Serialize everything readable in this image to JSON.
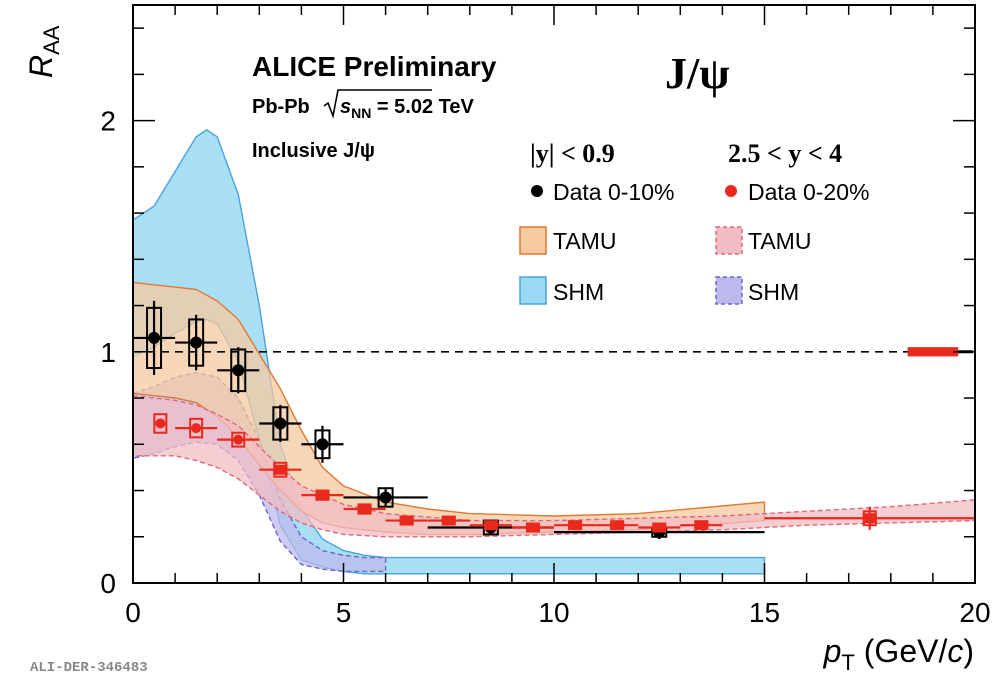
{
  "chart_data": {
    "type": "scatter",
    "title": "J/ψ",
    "xlabel": {
      "var": "p",
      "sub": "T",
      "unit_open": " (GeV/",
      "unit_c": "c",
      "unit_close": ")"
    },
    "ylabel": {
      "var": "R",
      "sub": "AA"
    },
    "xlim": [
      0,
      20
    ],
    "ylim": [
      0,
      2.5
    ],
    "xticks": [
      0,
      5,
      10,
      15,
      20
    ],
    "yticks": [
      0,
      1,
      2
    ],
    "reference_line": 1.0,
    "annotations": {
      "experiment": "ALICE Preliminary",
      "system": "Pb-Pb",
      "energy_var": "s",
      "energy_sub": "NN",
      "energy_value": " = 5.02 TeV",
      "selection": "Inclusive J/ψ",
      "id": "ALI-DER-346483"
    },
    "legend": {
      "col_mid_header": "|y| < 0.9",
      "col_fwd_header": "2.5 < y < 4",
      "mid_data": "Data 0-10%",
      "fwd_data": "Data 0-20%",
      "mid_tamu": "TAMU",
      "mid_shm": "SHM",
      "fwd_tamu": "TAMU",
      "fwd_shm": "SHM"
    },
    "colors": {
      "mid": "#000000",
      "fwd": "#e8291c",
      "tamu_mid_fill": "#f6c9a0",
      "tamu_mid_line": "#e07830",
      "shm_mid_fill": "#9ad9f2",
      "shm_mid_line": "#4aa3dd",
      "tamu_fwd_fill": "#f2bcc4",
      "tamu_fwd_line": "#dd6a7a",
      "shm_fwd_fill": "#bdb9ec",
      "shm_fwd_line": "#6a66cc"
    },
    "series": [
      {
        "name": "Data 0-10%",
        "color": "#000000",
        "x": [
          0.5,
          1.5,
          2.5,
          3.5,
          4.5,
          6.0,
          8.5,
          12.5
        ],
        "y": [
          1.06,
          1.04,
          0.92,
          0.69,
          0.6,
          0.37,
          0.24,
          0.22
        ],
        "xerr": [
          0.5,
          0.5,
          0.5,
          0.5,
          0.5,
          1.0,
          1.5,
          2.5
        ],
        "stat": [
          0.16,
          0.12,
          0.1,
          0.08,
          0.08,
          0.04,
          0.03,
          0.03
        ],
        "syst": [
          0.13,
          0.1,
          0.09,
          0.07,
          0.06,
          0.04,
          0.03,
          0.02
        ]
      },
      {
        "name": "Data 0-20%",
        "color": "#e8291c",
        "x": [
          0.65,
          1.5,
          2.5,
          3.5,
          4.5,
          5.5,
          6.5,
          7.5,
          8.5,
          9.5,
          10.5,
          11.5,
          12.5,
          13.5,
          17.5
        ],
        "y": [
          0.69,
          0.67,
          0.62,
          0.49,
          0.38,
          0.32,
          0.27,
          0.27,
          0.25,
          0.24,
          0.25,
          0.25,
          0.24,
          0.25,
          0.28
        ],
        "xerr": [
          0.15,
          0.5,
          0.5,
          0.5,
          0.5,
          0.5,
          0.5,
          0.5,
          0.5,
          0.5,
          0.5,
          0.5,
          0.5,
          0.5,
          2.5
        ],
        "stat": [
          0.02,
          0.02,
          0.02,
          0.02,
          0.01,
          0.01,
          0.01,
          0.01,
          0.01,
          0.01,
          0.01,
          0.01,
          0.01,
          0.01,
          0.05
        ],
        "syst": [
          0.04,
          0.04,
          0.03,
          0.03,
          0.02,
          0.02,
          0.01,
          0.01,
          0.01,
          0.01,
          0.01,
          0.01,
          0.01,
          0.01,
          0.03
        ]
      }
    ],
    "model_bands": [
      {
        "name": "SHM |y|<0.9",
        "fill": "#9ad9f2",
        "line": "#4aa3dd",
        "dash": false,
        "opacity": 0.85,
        "x": [
          0,
          0.5,
          1.0,
          1.5,
          1.75,
          2.0,
          2.5,
          3.0,
          3.5,
          4.0,
          4.5,
          5.0,
          5.5,
          6.0,
          7.0,
          10.0,
          15.0
        ],
        "hi": [
          1.57,
          1.63,
          1.78,
          1.93,
          1.96,
          1.93,
          1.68,
          1.2,
          0.6,
          0.32,
          0.19,
          0.14,
          0.12,
          0.11,
          0.11,
          0.11,
          0.11
        ],
        "lo": [
          0.98,
          1.02,
          1.08,
          1.13,
          1.14,
          1.12,
          0.96,
          0.62,
          0.25,
          0.1,
          0.07,
          0.05,
          0.04,
          0.04,
          0.04,
          0.04,
          0.04
        ]
      },
      {
        "name": "SHM 2.5<y<4",
        "fill": "#bdb9ec",
        "line": "#6a66cc",
        "dash": true,
        "opacity": 0.75,
        "x": [
          0,
          0.5,
          1.0,
          1.5,
          2.0,
          2.5,
          3.0,
          3.5,
          4.0,
          4.5,
          5.0,
          5.5,
          6.0
        ],
        "hi": [
          0.82,
          0.85,
          0.89,
          0.91,
          0.89,
          0.8,
          0.62,
          0.36,
          0.2,
          0.14,
          0.12,
          0.11,
          0.11
        ],
        "lo": [
          0.54,
          0.56,
          0.59,
          0.61,
          0.6,
          0.53,
          0.38,
          0.18,
          0.08,
          0.06,
          0.05,
          0.05,
          0.05
        ]
      },
      {
        "name": "TAMU |y|<0.9",
        "fill": "#f6c9a0",
        "line": "#e07830",
        "dash": false,
        "opacity": 0.75,
        "x": [
          0,
          0.5,
          1.0,
          1.5,
          2.0,
          2.5,
          3.0,
          3.5,
          4.0,
          4.5,
          5.0,
          6.0,
          7.0,
          8.0,
          10.0,
          12.0,
          15.0
        ],
        "hi": [
          1.3,
          1.29,
          1.28,
          1.27,
          1.22,
          1.14,
          0.99,
          0.84,
          0.66,
          0.5,
          0.42,
          0.35,
          0.32,
          0.3,
          0.29,
          0.3,
          0.35
        ],
        "lo": [
          0.82,
          0.81,
          0.8,
          0.78,
          0.72,
          0.63,
          0.51,
          0.4,
          0.31,
          0.26,
          0.24,
          0.22,
          0.21,
          0.21,
          0.22,
          0.23,
          0.27
        ]
      },
      {
        "name": "TAMU 2.5<y<4",
        "fill": "#f2bcc4",
        "line": "#dd6a7a",
        "dash": true,
        "opacity": 0.75,
        "x": [
          0,
          0.5,
          1.0,
          1.5,
          2.0,
          2.5,
          3.0,
          3.5,
          4.0,
          4.5,
          5.0,
          6.0,
          8.0,
          10.0,
          12.0,
          14.0,
          16.0,
          18.0,
          20.0
        ],
        "hi": [
          0.81,
          0.8,
          0.79,
          0.77,
          0.73,
          0.68,
          0.59,
          0.5,
          0.42,
          0.38,
          0.34,
          0.3,
          0.27,
          0.27,
          0.28,
          0.29,
          0.31,
          0.33,
          0.36
        ],
        "lo": [
          0.55,
          0.55,
          0.55,
          0.53,
          0.5,
          0.45,
          0.38,
          0.31,
          0.26,
          0.23,
          0.21,
          0.2,
          0.2,
          0.21,
          0.22,
          0.23,
          0.25,
          0.26,
          0.27
        ]
      }
    ],
    "extra_boxes": [
      {
        "x": 19.0,
        "y": 1.0,
        "xerr": 0.6,
        "hw": 0.02,
        "color": "#e8291c"
      }
    ]
  }
}
